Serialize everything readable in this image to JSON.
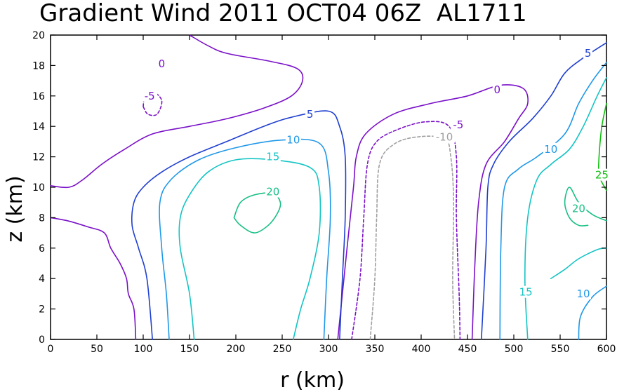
{
  "chart_data": {
    "type": "contour",
    "title": "Gradient Wind 2011 OCT04 06Z  AL1711",
    "xlabel": "r (km)",
    "ylabel": "z (km)",
    "xlim": [
      0,
      600
    ],
    "ylim": [
      0,
      20
    ],
    "xticks": [
      "0",
      "50",
      "100",
      "150",
      "200",
      "250",
      "300",
      "350",
      "400",
      "450",
      "500",
      "550",
      "600"
    ],
    "yticks": [
      "0",
      "2",
      "4",
      "6",
      "8",
      "10",
      "12",
      "14",
      "16",
      "18",
      "20"
    ],
    "grid": false,
    "contours": [
      {
        "level": "0",
        "color": "#7a10c8",
        "dashed": false,
        "points": [
          [
            92,
            0
          ],
          [
            90,
            2
          ],
          [
            84,
            3
          ],
          [
            82,
            4
          ],
          [
            75,
            5
          ],
          [
            65,
            6
          ],
          [
            58,
            7
          ],
          [
            40,
            7.4
          ],
          [
            18,
            7.8
          ],
          [
            0,
            8
          ]
        ]
      },
      {
        "level": "0",
        "color": "#7a10c8",
        "dashed": false,
        "points": [
          [
            0,
            10.1
          ],
          [
            20,
            10
          ],
          [
            35,
            10.5
          ],
          [
            55,
            11.5
          ],
          [
            80,
            12.5
          ],
          [
            110,
            13.5
          ],
          [
            150,
            14
          ],
          [
            190,
            14.5
          ],
          [
            230,
            15.2
          ],
          [
            260,
            16
          ],
          [
            272,
            17
          ],
          [
            266,
            17.8
          ],
          [
            235,
            18.3
          ],
          [
            190,
            18.8
          ],
          [
            170,
            19.3
          ],
          [
            150,
            20
          ]
        ]
      },
      {
        "level": "0",
        "color": "#7a10c8",
        "dashed": false,
        "points": [
          [
            310,
            0
          ],
          [
            320,
            6
          ],
          [
            327,
            10
          ],
          [
            330,
            12
          ],
          [
            340,
            13.5
          ],
          [
            370,
            14.8
          ],
          [
            410,
            15.5
          ],
          [
            450,
            16
          ],
          [
            485,
            16.7
          ],
          [
            510,
            16.5
          ],
          [
            515,
            15.5
          ],
          [
            505,
            14.5
          ],
          [
            490,
            13
          ],
          [
            470,
            11.5
          ],
          [
            462,
            9
          ],
          [
            458,
            5
          ],
          [
            455,
            0
          ]
        ]
      },
      {
        "level": "-5",
        "color": "#7a10c8",
        "dashed": true,
        "points": [
          [
            325,
            0
          ],
          [
            334,
            4
          ],
          [
            338,
            8
          ],
          [
            342,
            11.5
          ],
          [
            352,
            13
          ],
          [
            375,
            13.8
          ],
          [
            405,
            14.3
          ],
          [
            430,
            14
          ],
          [
            438,
            12
          ],
          [
            438,
            8
          ],
          [
            441,
            3
          ],
          [
            442,
            0
          ]
        ]
      },
      {
        "level": "-5",
        "color": "#7a10c8",
        "dashed": true,
        "points": [
          [
            100,
            15.3
          ],
          [
            102,
            16
          ],
          [
            110,
            16.3
          ],
          [
            120,
            15.7
          ],
          [
            115,
            14.8
          ],
          [
            105,
            14.8
          ],
          [
            100,
            15.3
          ]
        ]
      },
      {
        "level": "-10",
        "color": "#a0a0a0",
        "dashed": true,
        "points": [
          [
            345,
            0
          ],
          [
            350,
            4
          ],
          [
            352,
            8
          ],
          [
            355,
            11.5
          ],
          [
            370,
            12.8
          ],
          [
            395,
            13.3
          ],
          [
            425,
            13.2
          ],
          [
            432,
            12
          ],
          [
            435,
            9
          ],
          [
            434,
            4
          ],
          [
            436,
            0
          ]
        ]
      },
      {
        "level": "5",
        "color": "#1f3fd0",
        "dashed": false,
        "points": [
          [
            110,
            0
          ],
          [
            104,
            4
          ],
          [
            95,
            6
          ],
          [
            88,
            7.5
          ],
          [
            90,
            9
          ],
          [
            100,
            10
          ],
          [
            120,
            11
          ],
          [
            150,
            12
          ],
          [
            190,
            13
          ],
          [
            230,
            14
          ],
          [
            260,
            14.6
          ],
          [
            300,
            15
          ],
          [
            312,
            14
          ],
          [
            318,
            12
          ],
          [
            318,
            8
          ],
          [
            315,
            4
          ],
          [
            312,
            0
          ]
        ]
      },
      {
        "level": "5",
        "color": "#1f3fd0",
        "dashed": false,
        "points": [
          [
            465,
            0
          ],
          [
            470,
            6
          ],
          [
            472,
            10
          ],
          [
            478,
            11.5
          ],
          [
            495,
            13
          ],
          [
            520,
            14.5
          ],
          [
            540,
            16
          ],
          [
            555,
            17.5
          ],
          [
            575,
            18.5
          ],
          [
            600,
            19.5
          ]
        ]
      },
      {
        "level": "10",
        "color": "#1f98e8",
        "dashed": false,
        "points": [
          [
            128,
            0
          ],
          [
            125,
            3
          ],
          [
            120,
            6
          ],
          [
            118,
            9
          ],
          [
            130,
            10.5
          ],
          [
            160,
            11.8
          ],
          [
            200,
            12.6
          ],
          [
            250,
            13.1
          ],
          [
            290,
            12.9
          ],
          [
            300,
            11
          ],
          [
            302,
            8
          ],
          [
            298,
            4
          ],
          [
            295,
            0
          ]
        ]
      },
      {
        "level": "10",
        "color": "#1f98e8",
        "dashed": false,
        "points": [
          [
            485,
            0
          ],
          [
            486,
            6
          ],
          [
            490,
            10
          ],
          [
            505,
            11.2
          ],
          [
            525,
            12
          ],
          [
            555,
            13.5
          ],
          [
            570,
            15.5
          ],
          [
            585,
            17
          ],
          [
            600,
            18.2
          ]
        ]
      },
      {
        "level": "10",
        "color": "#1f98e8",
        "dashed": false,
        "points": [
          [
            570,
            0
          ],
          [
            572,
            1.5
          ],
          [
            585,
            2.8
          ],
          [
            600,
            3.5
          ]
        ]
      },
      {
        "level": "15",
        "color": "#14c4c4",
        "dashed": false,
        "points": [
          [
            155,
            0
          ],
          [
            150,
            3
          ],
          [
            140,
            6
          ],
          [
            140,
            8
          ],
          [
            150,
            9.5
          ],
          [
            170,
            11
          ],
          [
            200,
            11.8
          ],
          [
            240,
            11.8
          ],
          [
            280,
            11.3
          ],
          [
            290,
            10
          ],
          [
            290,
            7
          ],
          [
            280,
            4
          ],
          [
            270,
            2
          ],
          [
            262,
            0
          ]
        ]
      },
      {
        "level": "15",
        "color": "#14c4c4",
        "dashed": false,
        "points": [
          [
            515,
            0
          ],
          [
            512,
            4
          ],
          [
            515,
            8
          ],
          [
            525,
            10.5
          ],
          [
            540,
            11.5
          ],
          [
            560,
            12.5
          ],
          [
            575,
            14
          ],
          [
            590,
            16
          ],
          [
            600,
            17.2
          ]
        ]
      },
      {
        "level": "15",
        "color": "#14c4c4",
        "dashed": false,
        "points": [
          [
            540,
            4
          ],
          [
            555,
            4.6
          ],
          [
            570,
            5.3
          ],
          [
            590,
            5.9
          ],
          [
            600,
            6
          ]
        ]
      },
      {
        "level": "20",
        "color": "#18c084",
        "dashed": false,
        "points": [
          [
            198,
            8
          ],
          [
            205,
            7.5
          ],
          [
            220,
            7
          ],
          [
            235,
            7.5
          ],
          [
            245,
            8.3
          ],
          [
            248,
            9
          ],
          [
            240,
            9.6
          ],
          [
            220,
            9.5
          ],
          [
            205,
            9
          ],
          [
            198,
            8
          ]
        ]
      },
      {
        "level": "20",
        "color": "#18c084",
        "dashed": false,
        "points": [
          [
            600,
            7.8
          ],
          [
            585,
            8.2
          ],
          [
            570,
            9
          ],
          [
            560,
            10
          ],
          [
            555,
            9
          ],
          [
            560,
            8
          ],
          [
            570,
            7.5
          ],
          [
            580,
            7.5
          ]
        ]
      },
      {
        "level": "25",
        "color": "#10c010",
        "dashed": false,
        "points": [
          [
            600,
            15.5
          ],
          [
            595,
            14
          ],
          [
            592,
            12
          ],
          [
            592,
            10.8
          ],
          [
            598,
            10
          ],
          [
            600,
            9.8
          ]
        ]
      }
    ],
    "contour_labels": [
      {
        "text": "0",
        "x": 120,
        "y": 18.1,
        "color": "#7a10c8"
      },
      {
        "text": "-5",
        "x": 107,
        "y": 16.0,
        "color": "#7a10c8"
      },
      {
        "text": "5",
        "x": 280,
        "y": 14.8,
        "color": "#1f3fd0"
      },
      {
        "text": "10",
        "x": 262,
        "y": 13.1,
        "color": "#1f98e8"
      },
      {
        "text": "15",
        "x": 240,
        "y": 12.0,
        "color": "#14c4c4"
      },
      {
        "text": "20",
        "x": 240,
        "y": 9.7,
        "color": "#18c084"
      },
      {
        "text": "-5",
        "x": 440,
        "y": 14.1,
        "color": "#7a10c8"
      },
      {
        "text": "-10",
        "x": 425,
        "y": 13.3,
        "color": "#a0a0a0"
      },
      {
        "text": "0",
        "x": 482,
        "y": 16.4,
        "color": "#7a10c8"
      },
      {
        "text": "5",
        "x": 580,
        "y": 18.8,
        "color": "#1f3fd0"
      },
      {
        "text": "10",
        "x": 540,
        "y": 12.5,
        "color": "#1f98e8"
      },
      {
        "text": "20",
        "x": 570,
        "y": 8.6,
        "color": "#18c084"
      },
      {
        "text": "25",
        "x": 595,
        "y": 10.8,
        "color": "#10c010"
      },
      {
        "text": "15",
        "x": 513,
        "y": 3.1,
        "color": "#14c4c4"
      },
      {
        "text": "10",
        "x": 575,
        "y": 3.0,
        "color": "#1f98e8"
      }
    ]
  }
}
